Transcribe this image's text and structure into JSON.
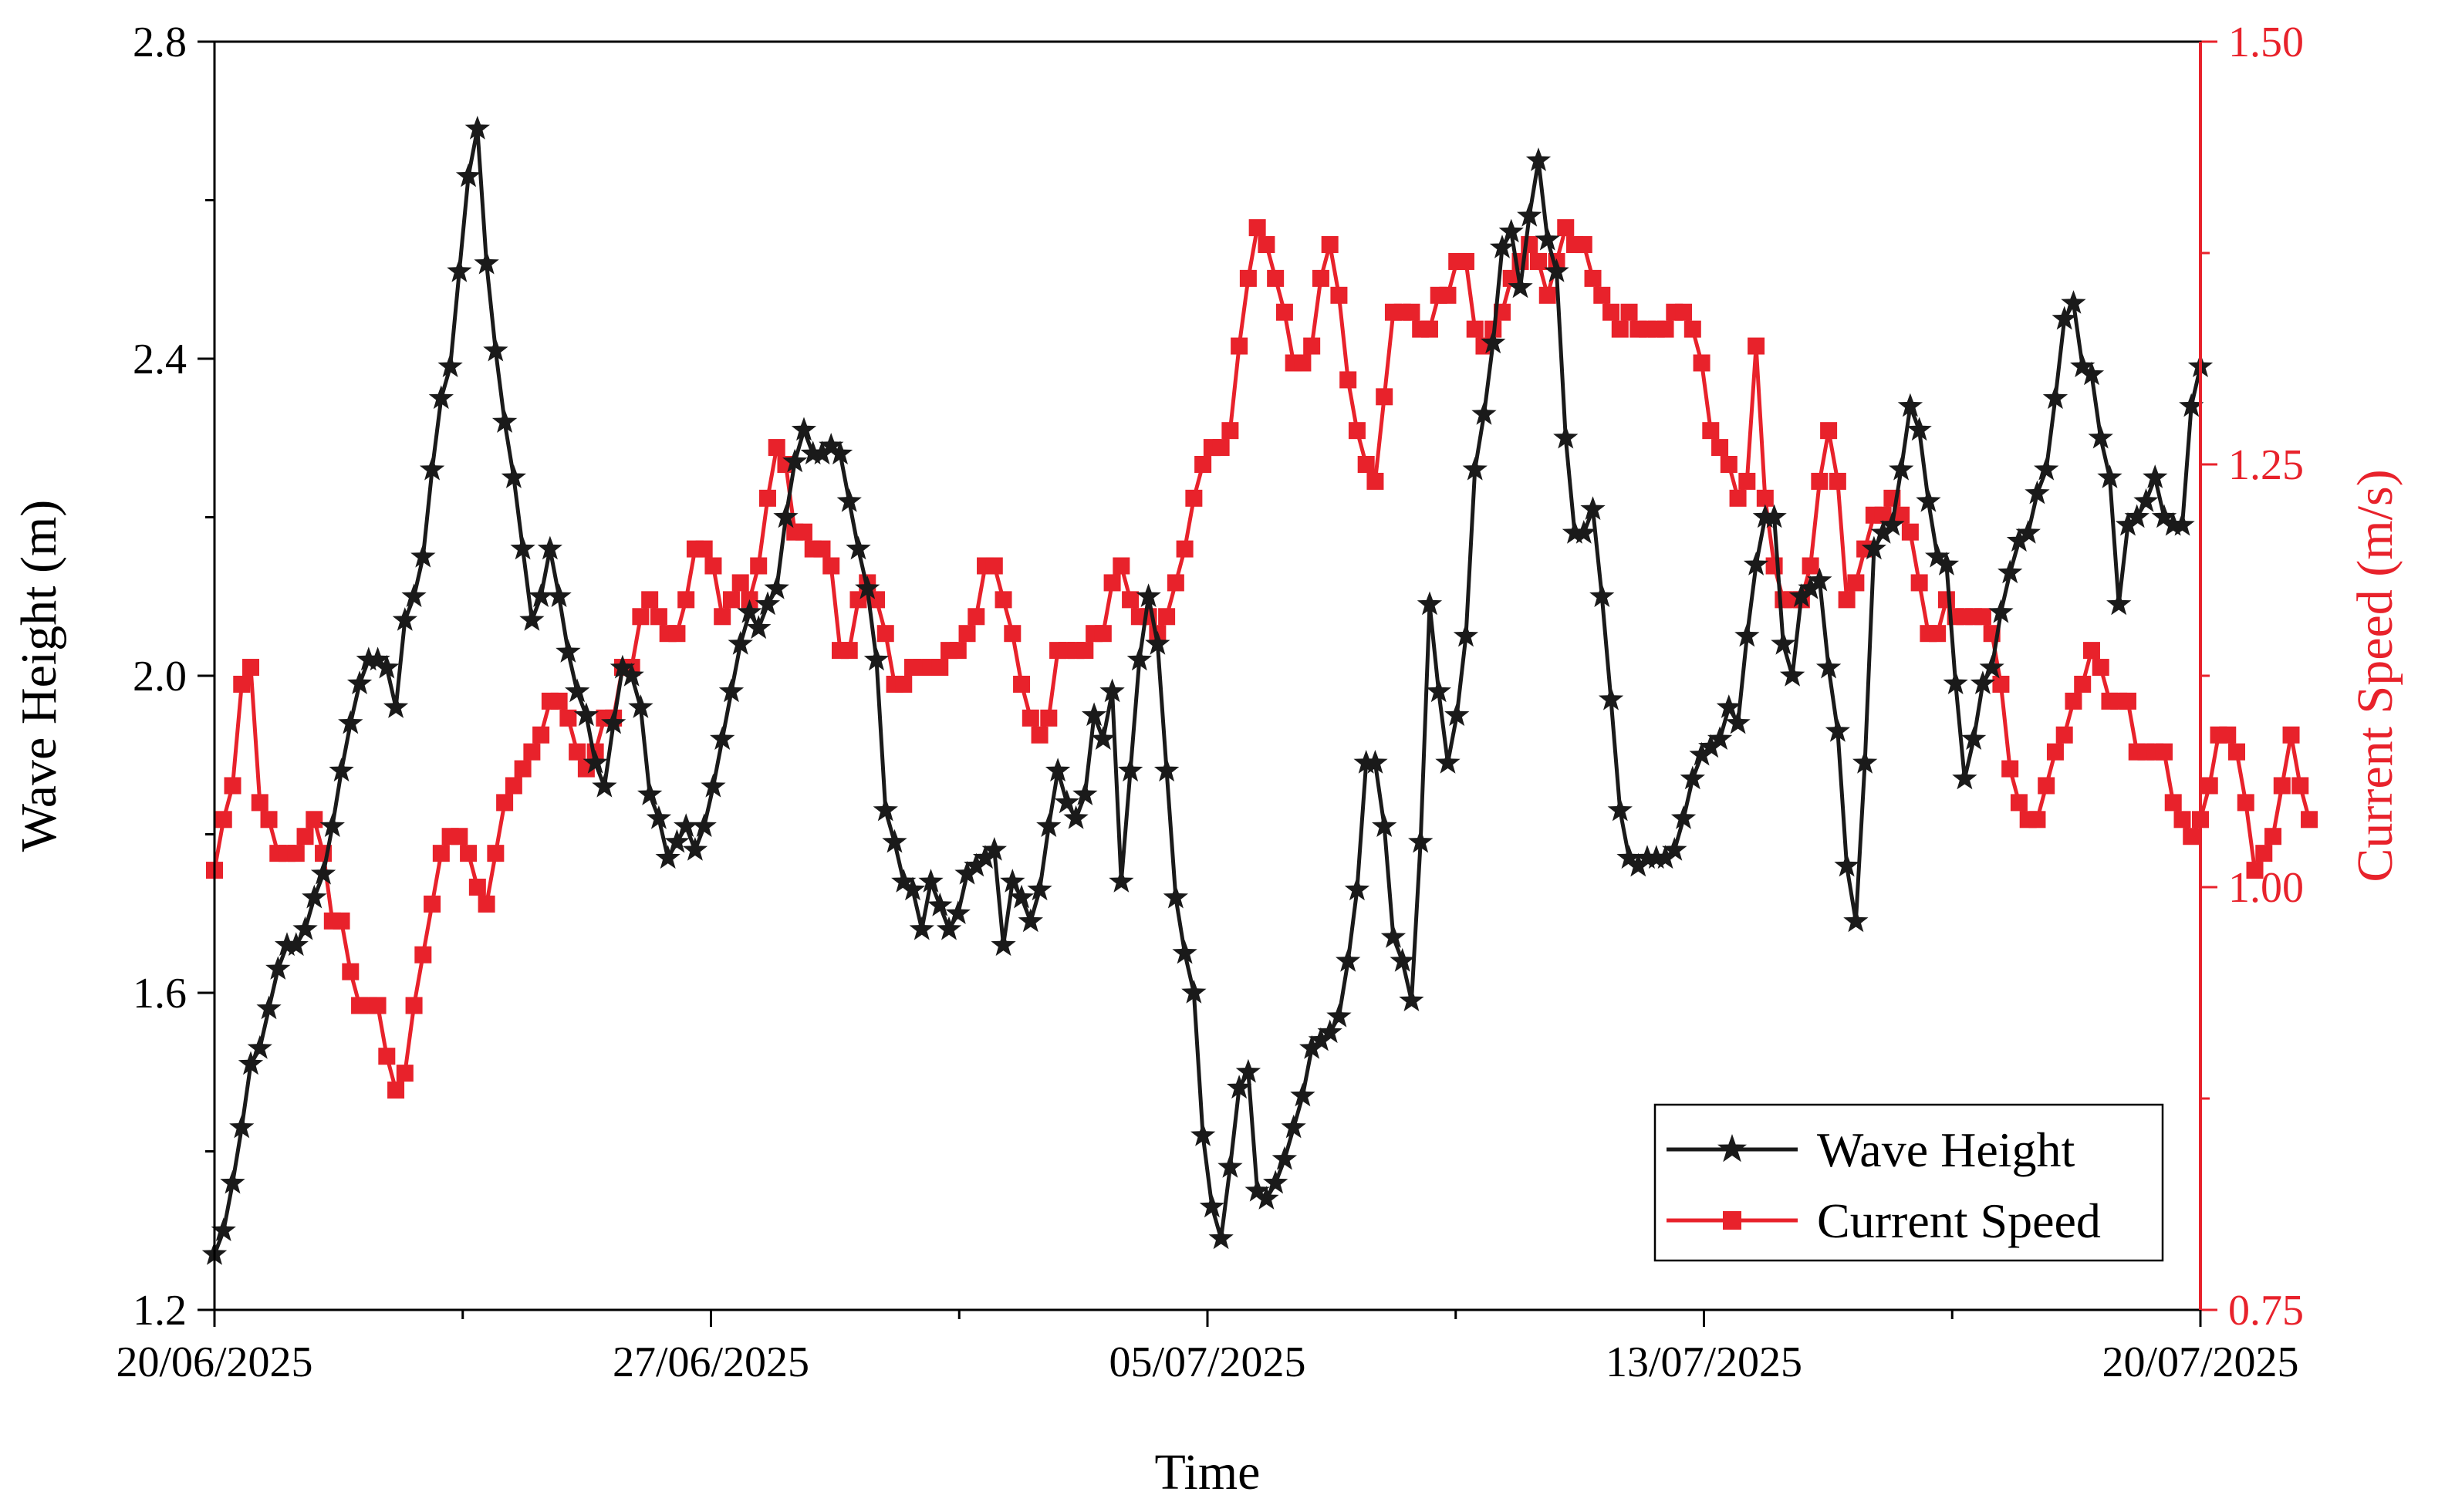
{
  "chart_data": {
    "type": "line",
    "title": "",
    "xlabel": "Time",
    "ylabel_left": "Wave Height (m)",
    "ylabel_right": "Current Speed (m/s)",
    "xlim": [
      0,
      240
    ],
    "x_tick_positions": [
      0,
      60,
      120,
      180,
      240
    ],
    "x_minor_positions": [
      30,
      90,
      150,
      210
    ],
    "x_tick_labels": [
      "20/06/2025",
      "27/06/2025",
      "05/07/2025",
      "13/07/2025",
      "20/07/2025"
    ],
    "ylim_left": [
      1.2,
      2.8
    ],
    "yticks_left": [
      "1.2",
      "1.6",
      "2.0",
      "2.4",
      "2.8"
    ],
    "ylim_right": [
      0.75,
      1.5
    ],
    "yticks_right": [
      "0.75",
      "1.00",
      "1.25",
      "1.50"
    ],
    "left_axis_color": "#000000",
    "right_axis_color": "#e8222b",
    "legend_position": "bottom-right",
    "legend": [
      "Wave Height",
      "Current Speed"
    ],
    "series": [
      {
        "name": "Wave Height",
        "axis": "left",
        "color": "#1a1a1a",
        "marker": "star",
        "values": [
          1.27,
          1.3,
          1.36,
          1.43,
          1.51,
          1.53,
          1.58,
          1.63,
          1.66,
          1.66,
          1.68,
          1.72,
          1.75,
          1.81,
          1.88,
          1.94,
          1.99,
          2.02,
          2.02,
          2.01,
          1.96,
          2.07,
          2.1,
          2.15,
          2.26,
          2.35,
          2.39,
          2.51,
          2.63,
          2.69,
          2.52,
          2.41,
          2.32,
          2.25,
          2.16,
          2.07,
          2.1,
          2.16,
          2.1,
          2.03,
          1.98,
          1.95,
          1.89,
          1.86,
          1.94,
          2.01,
          2.0,
          1.96,
          1.85,
          1.82,
          1.77,
          1.79,
          1.81,
          1.78,
          1.81,
          1.86,
          1.92,
          1.98,
          2.04,
          2.08,
          2.06,
          2.09,
          2.11,
          2.2,
          2.27,
          2.31,
          2.28,
          2.28,
          2.29,
          2.28,
          2.22,
          2.16,
          2.11,
          2.02,
          1.83,
          1.79,
          1.74,
          1.73,
          1.68,
          1.74,
          1.71,
          1.68,
          1.7,
          1.75,
          1.76,
          1.77,
          1.78,
          1.66,
          1.74,
          1.72,
          1.69,
          1.73,
          1.81,
          1.88,
          1.84,
          1.82,
          1.85,
          1.95,
          1.92,
          1.98,
          1.74,
          1.88,
          2.02,
          2.1,
          2.04,
          1.88,
          1.72,
          1.65,
          1.6,
          1.42,
          1.33,
          1.29,
          1.38,
          1.48,
          1.5,
          1.35,
          1.34,
          1.36,
          1.39,
          1.43,
          1.47,
          1.53,
          1.54,
          1.55,
          1.57,
          1.64,
          1.73,
          1.89,
          1.89,
          1.81,
          1.67,
          1.64,
          1.59,
          1.79,
          2.09,
          1.98,
          1.89,
          1.95,
          2.05,
          2.26,
          2.33,
          2.42,
          2.54,
          2.56,
          2.49,
          2.58,
          2.65,
          2.55,
          2.51,
          2.3,
          2.18,
          2.18,
          2.21,
          2.1,
          1.97,
          1.83,
          1.77,
          1.76,
          1.77,
          1.77,
          1.77,
          1.78,
          1.82,
          1.87,
          1.9,
          1.91,
          1.92,
          1.96,
          1.94,
          2.05,
          2.14,
          2.2,
          2.2,
          2.04,
          2.0,
          2.1,
          2.11,
          2.12,
          2.01,
          1.93,
          1.76,
          1.69,
          1.89,
          2.16,
          2.18,
          2.19,
          2.26,
          2.34,
          2.31,
          2.22,
          2.15,
          2.14,
          1.99,
          1.87,
          1.92,
          1.99,
          2.01,
          2.08,
          2.13,
          2.17,
          2.18,
          2.23,
          2.26,
          2.35,
          2.45,
          2.47,
          2.39,
          2.38,
          2.3,
          2.25,
          2.09,
          2.19,
          2.2,
          2.22,
          2.25,
          2.2,
          2.19,
          2.19,
          2.34,
          2.39
        ]
      },
      {
        "name": "Current Speed",
        "axis": "right",
        "color": "#e8222b",
        "marker": "square",
        "values": [
          1.01,
          1.04,
          1.06,
          1.12,
          1.13,
          1.05,
          1.04,
          1.02,
          1.02,
          1.02,
          1.03,
          1.04,
          1.02,
          0.98,
          0.98,
          0.95,
          0.93,
          0.93,
          0.93,
          0.9,
          0.88,
          0.89,
          0.93,
          0.96,
          0.99,
          1.02,
          1.03,
          1.03,
          1.02,
          1.0,
          0.99,
          1.02,
          1.05,
          1.06,
          1.07,
          1.08,
          1.09,
          1.11,
          1.11,
          1.1,
          1.08,
          1.07,
          1.08,
          1.1,
          1.1,
          1.13,
          1.13,
          1.16,
          1.17,
          1.16,
          1.15,
          1.15,
          1.17,
          1.2,
          1.2,
          1.19,
          1.16,
          1.17,
          1.18,
          1.17,
          1.19,
          1.23,
          1.26,
          1.25,
          1.21,
          1.21,
          1.2,
          1.2,
          1.19,
          1.14,
          1.14,
          1.17,
          1.18,
          1.17,
          1.15,
          1.12,
          1.12,
          1.13,
          1.13,
          1.13,
          1.13,
          1.14,
          1.14,
          1.15,
          1.16,
          1.19,
          1.19,
          1.17,
          1.15,
          1.12,
          1.1,
          1.09,
          1.1,
          1.14,
          1.14,
          1.14,
          1.14,
          1.15,
          1.15,
          1.18,
          1.19,
          1.17,
          1.16,
          1.16,
          1.15,
          1.16,
          1.18,
          1.2,
          1.23,
          1.25,
          1.26,
          1.26,
          1.27,
          1.32,
          1.36,
          1.39,
          1.38,
          1.36,
          1.34,
          1.31,
          1.31,
          1.32,
          1.36,
          1.38,
          1.35,
          1.3,
          1.27,
          1.25,
          1.24,
          1.29,
          1.34,
          1.34,
          1.34,
          1.33,
          1.33,
          1.35,
          1.35,
          1.37,
          1.37,
          1.33,
          1.32,
          1.33,
          1.34,
          1.36,
          1.37,
          1.38,
          1.37,
          1.35,
          1.37,
          1.39,
          1.38,
          1.38,
          1.36,
          1.35,
          1.34,
          1.33,
          1.34,
          1.33,
          1.33,
          1.33,
          1.33,
          1.34,
          1.34,
          1.33,
          1.31,
          1.27,
          1.26,
          1.25,
          1.23,
          1.24,
          1.32,
          1.23,
          1.19,
          1.17,
          1.17,
          1.17,
          1.19,
          1.24,
          1.27,
          1.24,
          1.17,
          1.18,
          1.2,
          1.22,
          1.22,
          1.23,
          1.22,
          1.21,
          1.18,
          1.15,
          1.15,
          1.17,
          1.16,
          1.16,
          1.16,
          1.16,
          1.15,
          1.12,
          1.07,
          1.05,
          1.04,
          1.04,
          1.06,
          1.08,
          1.09,
          1.11,
          1.12,
          1.14,
          1.13,
          1.11,
          1.11,
          1.11,
          1.08,
          1.08,
          1.08,
          1.08,
          1.05,
          1.04,
          1.03,
          1.04,
          1.06,
          1.09,
          1.09,
          1.08,
          1.05,
          1.01,
          1.02,
          1.03,
          1.06,
          1.09,
          1.06,
          1.04
        ]
      }
    ]
  }
}
